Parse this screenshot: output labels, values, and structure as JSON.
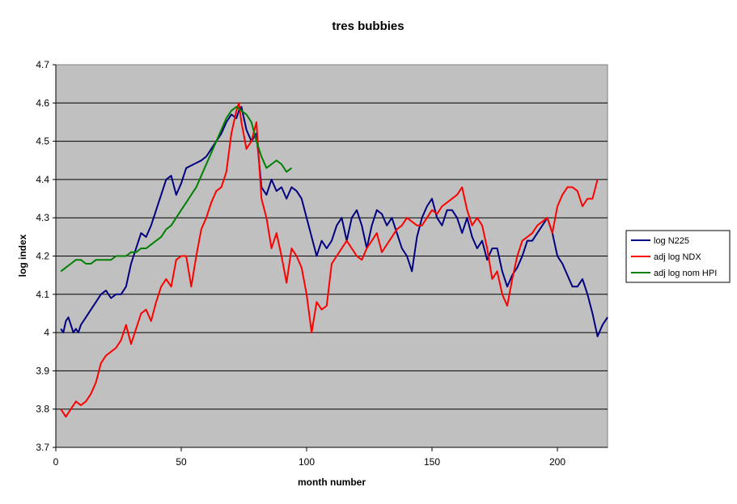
{
  "chart_data": {
    "type": "line",
    "title": "tres bubbies",
    "xlabel": "month number",
    "ylabel": "log index",
    "xlim": [
      0,
      220
    ],
    "ylim": [
      3.7,
      4.7
    ],
    "x_ticks": [
      "0",
      "50",
      "100",
      "150",
      "200"
    ],
    "y_ticks": [
      "3.7",
      "3.8",
      "3.9",
      "4",
      "4.1",
      "4.2",
      "4.3",
      "4.4",
      "4.5",
      "4.6",
      "4.7"
    ],
    "grid": "horizontal",
    "plot_background": "#c0c0c0",
    "legend_position": "right",
    "series": [
      {
        "name": "log N225",
        "color": "#000080",
        "x": [
          2,
          3,
          4,
          5,
          6,
          7,
          8,
          9,
          10,
          12,
          14,
          16,
          18,
          20,
          22,
          24,
          26,
          28,
          30,
          32,
          34,
          36,
          38,
          40,
          42,
          44,
          46,
          48,
          50,
          52,
          55,
          58,
          60,
          62,
          64,
          66,
          68,
          70,
          72,
          73,
          74,
          76,
          78,
          80,
          82,
          84,
          86,
          88,
          90,
          92,
          94,
          96,
          98,
          100,
          102,
          104,
          106,
          108,
          110,
          112,
          114,
          116,
          118,
          120,
          122,
          124,
          126,
          128,
          130,
          132,
          134,
          136,
          138,
          140,
          142,
          144,
          146,
          148,
          150,
          152,
          154,
          156,
          158,
          160,
          162,
          164,
          166,
          168,
          170,
          172,
          174,
          176,
          178,
          180,
          182,
          184,
          186,
          188,
          190,
          192,
          194,
          196,
          198,
          200,
          202,
          204,
          206,
          208,
          210,
          212,
          214,
          216,
          218,
          220
        ],
        "values": [
          4.01,
          4.0,
          4.03,
          4.04,
          4.02,
          4.0,
          4.01,
          4.0,
          4.02,
          4.04,
          4.06,
          4.08,
          4.1,
          4.11,
          4.09,
          4.1,
          4.1,
          4.12,
          4.18,
          4.22,
          4.26,
          4.25,
          4.28,
          4.32,
          4.36,
          4.4,
          4.41,
          4.36,
          4.39,
          4.43,
          4.44,
          4.45,
          4.46,
          4.48,
          4.5,
          4.52,
          4.55,
          4.57,
          4.56,
          4.58,
          4.59,
          4.53,
          4.5,
          4.52,
          4.38,
          4.36,
          4.4,
          4.37,
          4.38,
          4.35,
          4.38,
          4.37,
          4.35,
          4.3,
          4.25,
          4.2,
          4.24,
          4.22,
          4.24,
          4.28,
          4.3,
          4.24,
          4.3,
          4.32,
          4.28,
          4.22,
          4.28,
          4.32,
          4.31,
          4.28,
          4.3,
          4.26,
          4.22,
          4.2,
          4.16,
          4.25,
          4.3,
          4.33,
          4.35,
          4.3,
          4.28,
          4.32,
          4.32,
          4.3,
          4.26,
          4.3,
          4.25,
          4.22,
          4.24,
          4.19,
          4.22,
          4.22,
          4.16,
          4.12,
          4.15,
          4.17,
          4.2,
          4.24,
          4.24,
          4.26,
          4.28,
          4.3,
          4.26,
          4.2,
          4.18,
          4.15,
          4.12,
          4.12,
          4.14,
          4.1,
          4.05,
          3.99,
          4.02,
          4.04
        ]
      },
      {
        "name": "adj log NDX",
        "color": "#ff0000",
        "x": [
          2,
          3,
          4,
          5,
          6,
          7,
          8,
          10,
          12,
          14,
          16,
          18,
          20,
          22,
          24,
          26,
          28,
          30,
          32,
          34,
          36,
          38,
          40,
          42,
          44,
          46,
          48,
          50,
          52,
          54,
          56,
          58,
          60,
          62,
          64,
          66,
          68,
          70,
          72,
          73,
          74,
          76,
          78,
          80,
          82,
          84,
          86,
          88,
          90,
          92,
          94,
          96,
          98,
          100,
          102,
          104,
          106,
          108,
          110,
          112,
          114,
          116,
          118,
          120,
          122,
          124,
          126,
          128,
          130,
          132,
          134,
          136,
          138,
          140,
          142,
          144,
          146,
          148,
          150,
          152,
          154,
          156,
          158,
          160,
          162,
          164,
          166,
          168,
          170,
          172,
          174,
          176,
          178,
          180,
          182,
          184,
          186,
          188,
          190,
          192,
          194,
          196,
          198,
          200,
          202,
          204,
          206,
          208,
          210,
          212,
          214,
          216
        ],
        "values": [
          3.8,
          3.79,
          3.78,
          3.79,
          3.8,
          3.81,
          3.82,
          3.81,
          3.82,
          3.84,
          3.87,
          3.92,
          3.94,
          3.95,
          3.96,
          3.98,
          4.02,
          3.97,
          4.01,
          4.05,
          4.06,
          4.03,
          4.08,
          4.12,
          4.14,
          4.12,
          4.19,
          4.2,
          4.2,
          4.12,
          4.2,
          4.27,
          4.3,
          4.34,
          4.37,
          4.38,
          4.42,
          4.52,
          4.58,
          4.6,
          4.55,
          4.48,
          4.5,
          4.55,
          4.35,
          4.3,
          4.22,
          4.26,
          4.2,
          4.13,
          4.22,
          4.2,
          4.17,
          4.1,
          4.0,
          4.08,
          4.06,
          4.07,
          4.18,
          4.2,
          4.22,
          4.24,
          4.22,
          4.2,
          4.19,
          4.22,
          4.24,
          4.26,
          4.21,
          4.23,
          4.25,
          4.27,
          4.28,
          4.3,
          4.29,
          4.28,
          4.28,
          4.3,
          4.32,
          4.31,
          4.33,
          4.34,
          4.35,
          4.36,
          4.38,
          4.32,
          4.28,
          4.3,
          4.28,
          4.22,
          4.14,
          4.16,
          4.1,
          4.07,
          4.14,
          4.2,
          4.24,
          4.25,
          4.26,
          4.28,
          4.29,
          4.3,
          4.26,
          4.33,
          4.36,
          4.38,
          4.38,
          4.37,
          4.33,
          4.35,
          4.35,
          4.4
        ]
      },
      {
        "name": "adj log nom HPI",
        "color": "#008000",
        "x": [
          2,
          4,
          6,
          8,
          10,
          12,
          14,
          16,
          18,
          20,
          22,
          24,
          26,
          28,
          30,
          32,
          34,
          36,
          38,
          40,
          42,
          44,
          46,
          48,
          50,
          52,
          54,
          56,
          58,
          60,
          62,
          64,
          66,
          68,
          70,
          72,
          74,
          76,
          78,
          80,
          82,
          84,
          86,
          88,
          90,
          92,
          94
        ],
        "values": [
          4.16,
          4.17,
          4.18,
          4.19,
          4.19,
          4.18,
          4.18,
          4.19,
          4.19,
          4.19,
          4.19,
          4.2,
          4.2,
          4.2,
          4.21,
          4.21,
          4.22,
          4.22,
          4.23,
          4.24,
          4.25,
          4.27,
          4.28,
          4.3,
          4.32,
          4.34,
          4.36,
          4.38,
          4.41,
          4.44,
          4.47,
          4.5,
          4.53,
          4.56,
          4.58,
          4.59,
          4.58,
          4.57,
          4.55,
          4.5,
          4.46,
          4.43,
          4.44,
          4.45,
          4.44,
          4.42,
          4.43
        ]
      }
    ]
  }
}
